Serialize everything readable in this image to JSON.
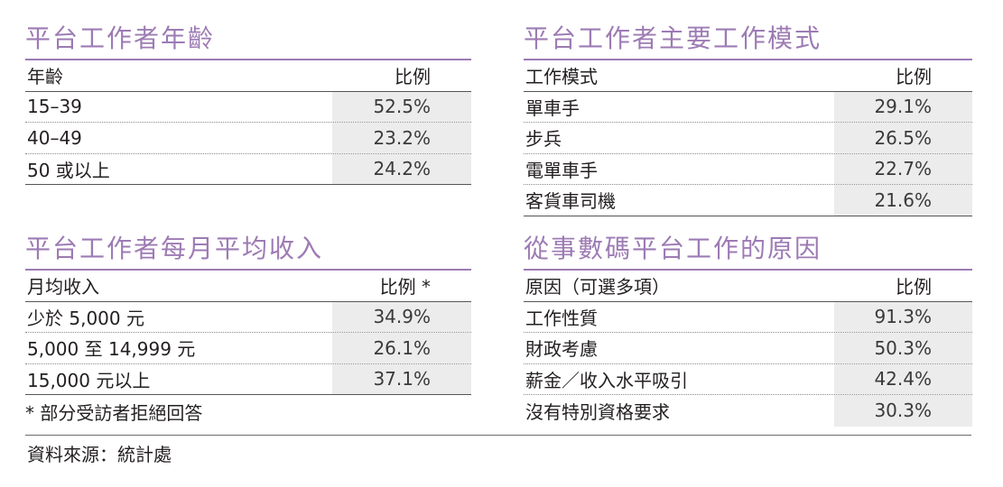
{
  "age_table": {
    "title": "平台工作者年齡",
    "header": {
      "label": "年齡",
      "value": "比例"
    },
    "rows": [
      {
        "label": "15–39",
        "value": "52.5%"
      },
      {
        "label": "40–49",
        "value": "23.2%"
      },
      {
        "label": "50 或以上",
        "value": "24.2%"
      }
    ]
  },
  "income_table": {
    "title": "平台工作者每月平均收入",
    "header": {
      "label": "月均收入",
      "value": "比例 *"
    },
    "rows": [
      {
        "label": "少於 5,000 元",
        "value": "34.9%"
      },
      {
        "label": "5,000 至 14,999 元",
        "value": "26.1%"
      },
      {
        "label": "15,000 元以上",
        "value": "37.1%"
      }
    ],
    "footnote": "* 部分受訪者拒絕回答"
  },
  "mode_table": {
    "title": "平台工作者主要工作模式",
    "header": {
      "label": "工作模式",
      "value": "比例"
    },
    "rows": [
      {
        "label": "單車手",
        "value": "29.1%"
      },
      {
        "label": "步兵",
        "value": "26.5%"
      },
      {
        "label": "電單車手",
        "value": "22.7%"
      },
      {
        "label": "客貨車司機",
        "value": "21.6%"
      }
    ]
  },
  "reason_table": {
    "title": "從事數碼平台工作的原因",
    "header": {
      "label": "原因（可選多項）",
      "value": "比例"
    },
    "rows": [
      {
        "label": "工作性質",
        "value": "91.3%"
      },
      {
        "label": "財政考慮",
        "value": "50.3%"
      },
      {
        "label": "薪金／收入水平吸引",
        "value": "42.4%"
      },
      {
        "label": "沒有特別資格要求",
        "value": "30.3%"
      }
    ]
  },
  "source": "資料來源：統計處",
  "colors": {
    "accent": "#9d7bb4",
    "cell_fill": "#ececec",
    "text": "#231f20"
  }
}
